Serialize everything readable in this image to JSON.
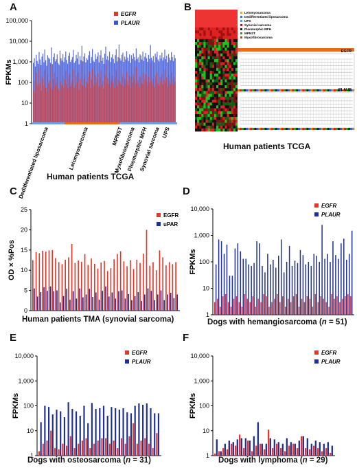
{
  "colors": {
    "red": "#e0392b",
    "blue": "#1f2f9a",
    "blue_light": "#3b55d8",
    "orange": "#e86a1d"
  },
  "panels": {
    "A": {
      "letter": "A",
      "caption": "Human patients TCGA"
    },
    "B": {
      "letter": "B",
      "caption": "Human patients TCGA",
      "legend": [
        "Leiomyosarcoma",
        "Dedifferentiated liposarcoma",
        "UPS",
        "Synovial sarcoma",
        "Pleomorphic MFH",
        "MPNST",
        "Myxofibrosarcoma"
      ],
      "legend_colors": [
        "#f0a030",
        "#3a70d0",
        "#4aa0e0",
        "#c02020",
        "#202020",
        "#508050",
        "#a05020"
      ],
      "track_labels": [
        "EGFR",
        "PLAUR"
      ]
    },
    "C": {
      "letter": "C",
      "caption": "Human patients TMA (synovial sarcoma)"
    },
    "D": {
      "letter": "D",
      "caption_prefix": "Dogs with hemangiosarcoma (",
      "caption_n": "n",
      "caption_suffix": " = 51)"
    },
    "E": {
      "letter": "E",
      "caption_prefix": "Dogs with osteosarcoma (",
      "caption_n": "n",
      "caption_suffix": " = 31)"
    },
    "F": {
      "letter": "F",
      "caption_prefix": "Dogs with lymphoma (",
      "caption_n": "n",
      "caption_suffix": " = 29)"
    }
  },
  "chart_data": [
    {
      "id": "A",
      "type": "bar",
      "scale": "log",
      "ylabel": "FPKMs",
      "ylim": [
        1,
        100000
      ],
      "ytick_labels": [
        "1",
        "10",
        "100",
        "1,000",
        "10,000",
        "100,000"
      ],
      "legend": [
        {
          "name": "EGFR",
          "color": "#e0392b"
        },
        {
          "name": "PLAUR",
          "color": "#3b55d8"
        }
      ],
      "groups": [
        "Dedifferentiated liposarcoma",
        "Leiomyosarcoma",
        "MPNST",
        "Myxofibrosarcoma",
        "Pleomorphic MFH",
        "Synovial sarcoma",
        "UPS"
      ],
      "series": [
        {
          "name": "EGFR",
          "values": [
            40,
            120,
            30,
            300,
            80,
            60,
            500,
            90,
            40,
            200,
            150,
            70,
            400,
            55,
            35,
            250,
            90,
            120,
            60,
            800,
            45,
            150,
            300,
            70,
            95,
            180,
            50,
            40,
            600,
            110,
            75,
            220,
            60,
            140,
            380,
            85,
            50,
            170,
            260,
            65,
            90,
            130,
            420,
            55,
            75,
            200,
            100,
            310,
            45,
            160,
            88,
            1200,
            70,
            150,
            240,
            60,
            110,
            90,
            190,
            330,
            52,
            140,
            470,
            80,
            65,
            210,
            98,
            150,
            270,
            60,
            180,
            400,
            75,
            120,
            50,
            230,
            700,
            90,
            160,
            85,
            300,
            60,
            130,
            210,
            95,
            55,
            180,
            420,
            70,
            140,
            1500,
            110,
            80,
            190,
            260,
            65,
            150,
            90,
            330,
            120,
            75,
            210,
            55,
            180,
            100,
            240,
            140,
            80,
            560,
            95,
            130,
            60,
            210,
            170,
            90,
            300,
            75,
            140,
            250,
            110,
            65,
            190,
            100,
            900,
            120,
            80,
            160,
            60,
            230,
            140,
            300,
            90,
            70,
            180,
            110,
            260,
            80,
            130,
            400,
            95,
            170,
            60,
            220,
            120,
            85,
            300,
            140,
            75,
            190,
            110
          ]
        },
        {
          "name": "PLAUR",
          "values": [
            900,
            1500,
            600,
            2200,
            1100,
            800,
            3000,
            1300,
            700,
            1800,
            2500,
            950,
            4000,
            1200,
            650,
            2100,
            1600,
            1400,
            900,
            5000,
            780,
            1700,
            2600,
            1050,
            1350,
            2300,
            880,
            720,
            3500,
            1500,
            1150,
            2400,
            980,
            1650,
            3200,
            1250,
            820,
            2000,
            2800,
            1000,
            1300,
            1700,
            3800,
            900,
            1100,
            2200,
            1450,
            3000,
            760,
            1900,
            1200,
            6000,
            1050,
            1800,
            2600,
            950,
            1500,
            1250,
            2100,
            3300,
            860,
            1700,
            4200,
            1150,
            1000,
            2400,
            1380,
            1800,
            2900,
            950,
            2100,
            3600,
            1100,
            1600,
            800,
            2500,
            5500,
            1300,
            1900,
            1200,
            3100,
            980,
            1650,
            2300,
            1400,
            870,
            2100,
            4100,
            1050,
            1700,
            7000,
            1500,
            1150,
            2200,
            2800,
            1000,
            1800,
            1300,
            3300,
            1600,
            1100,
            2300,
            900,
            2100,
            1400,
            2600,
            1700,
            1150,
            4500,
            1350,
            1650,
            950,
            2300,
            2000,
            1300,
            3100,
            1100,
            1750,
            2700,
            1500,
            1000,
            2200,
            1400,
            6500,
            1600,
            1150,
            1900,
            950,
            2500,
            1700,
            3100,
            1300,
            1050,
            2100,
            1450,
            2800,
            1150,
            1650,
            3900,
            1350,
            2000,
            950,
            2400,
            1600,
            1200,
            3000,
            1700,
            1100,
            2200,
            1500
          ]
        }
      ]
    },
    {
      "id": "C",
      "type": "bar",
      "scale": "linear",
      "ylabel": "OD × %Pos",
      "ylim": [
        0,
        25
      ],
      "ytick_labels": [
        "0",
        "5",
        "10",
        "15",
        "20",
        "25"
      ],
      "legend": [
        {
          "name": "EGFR",
          "color": "#e0392b"
        },
        {
          "name": "uPAR",
          "color": "#1f2f9a"
        }
      ],
      "series": [
        {
          "name": "EGFR",
          "values": [
            12.5,
            14.5,
            14.2,
            14.8,
            14.6,
            14.9,
            15.0,
            13.0,
            12.0,
            11.5,
            12.6,
            13.2,
            16.5,
            11.8,
            12.4,
            12.1,
            14.0,
            11.3,
            12.9,
            11.6,
            10.4,
            11.9,
            12.3,
            9.8,
            10.5,
            12.7,
            14.0,
            14.7,
            12.2,
            11.0,
            12.5,
            10.3,
            12.6,
            11.8,
            14.1,
            20.0,
            11.1,
            12.0,
            10.0,
            14.9,
            13.2,
            11.2,
            12.0,
            11.5,
            12.0
          ]
        },
        {
          "name": "uPAR",
          "values": [
            5.5,
            3.5,
            4.6,
            5.8,
            4.9,
            6.0,
            4.8,
            5.0,
            2.0,
            3.6,
            5.4,
            2.7,
            4.8,
            3.0,
            5.5,
            3.3,
            4.0,
            5.4,
            3.4,
            4.5,
            2.7,
            4.9,
            6.0,
            3.5,
            4.5,
            3.0,
            4.8,
            5.0,
            3.0,
            4.1,
            2.6,
            3.6,
            4.6,
            2.4,
            4.0,
            5.5,
            4.9,
            2.6,
            4.0,
            5.0,
            2.6,
            4.0,
            4.4,
            3.1,
            4.0
          ]
        }
      ]
    },
    {
      "id": "D",
      "type": "bar",
      "scale": "log",
      "ylabel": "FPKMs",
      "ylim": [
        1,
        10000
      ],
      "ytick_labels": [
        "1",
        "10",
        "100",
        "1,000",
        "10,000"
      ],
      "legend": [
        {
          "name": "EGFR",
          "color": "#e0392b"
        },
        {
          "name": "PLAUR",
          "color": "#1f2f9a"
        }
      ],
      "series": [
        {
          "name": "EGFR",
          "values": [
            3,
            4,
            2,
            5,
            6,
            3,
            2,
            4,
            5,
            3,
            2,
            6,
            4,
            3,
            5,
            2,
            4,
            3,
            6,
            5,
            2,
            3,
            4,
            6,
            3,
            5,
            2,
            4,
            3,
            5,
            6,
            2,
            4,
            3,
            5,
            4,
            2,
            6,
            3,
            5,
            4,
            3,
            2,
            6,
            4,
            5,
            3,
            4,
            5,
            6,
            5
          ]
        },
        {
          "name": "PLAUR",
          "values": [
            80,
            700,
            600,
            200,
            450,
            30,
            30,
            320,
            500,
            250,
            130,
            130,
            80,
            70,
            90,
            600,
            500,
            70,
            40,
            200,
            80,
            120,
            60,
            170,
            700,
            40,
            100,
            400,
            70,
            110,
            90,
            280,
            180,
            80,
            100,
            70,
            200,
            170,
            100,
            2500,
            130,
            200,
            100,
            600,
            180,
            130,
            500,
            750,
            120,
            200,
            1500
          ]
        }
      ]
    },
    {
      "id": "E",
      "type": "bar",
      "scale": "log",
      "ylabel": "FPKMs",
      "ylim": [
        1,
        10000
      ],
      "ytick_labels": [
        "1",
        "10",
        "100",
        "1,000",
        "10,000"
      ],
      "legend": [
        {
          "name": "EGFR",
          "color": "#e0392b"
        },
        {
          "name": "PLAUR",
          "color": "#1f2f9a"
        }
      ],
      "series": [
        {
          "name": "EGFR",
          "values": [
            1.5,
            3,
            4,
            10,
            2,
            1.8,
            3,
            2.5,
            6,
            2,
            3,
            4,
            5,
            2,
            3,
            4,
            5,
            5,
            3,
            4,
            2,
            5,
            3,
            6,
            20,
            3,
            4,
            5,
            3,
            2,
            8
          ]
        },
        {
          "name": "PLAUR",
          "values": [
            22,
            100,
            90,
            45,
            70,
            60,
            35,
            140,
            75,
            60,
            40,
            100,
            20,
            130,
            75,
            80,
            100,
            40,
            90,
            80,
            70,
            80,
            55,
            50,
            100,
            125,
            110,
            125,
            80,
            50,
            50
          ]
        }
      ]
    },
    {
      "id": "F",
      "type": "bar",
      "scale": "log",
      "ylabel": "FPKMs",
      "ylim": [
        1,
        10000
      ],
      "ytick_labels": [
        "1",
        "10",
        "100",
        "1,000",
        "10,000"
      ],
      "legend": [
        {
          "name": "EGFR",
          "color": "#e0392b"
        },
        {
          "name": "PLAUR",
          "color": "#1f2f9a"
        }
      ],
      "series": [
        {
          "name": "EGFR",
          "values": [
            1.2,
            1.5,
            2,
            1.8,
            3,
            2.5,
            7,
            2,
            4,
            1.5,
            2.5,
            3,
            1.8,
            11,
            2,
            3,
            2,
            1.5,
            2.5,
            3,
            2,
            6,
            2,
            1.8,
            2.5,
            2,
            1.5,
            2,
            1.3
          ]
        },
        {
          "name": "PLAUR",
          "values": [
            4.5,
            1.5,
            3,
            4,
            3.5,
            4.5,
            5,
            5,
            4,
            6,
            22,
            3,
            3,
            5,
            4.5,
            3.5,
            3,
            5,
            3.5,
            3,
            4,
            6,
            5,
            3,
            4,
            3.5,
            3,
            3.5,
            2.5
          ]
        }
      ]
    }
  ]
}
